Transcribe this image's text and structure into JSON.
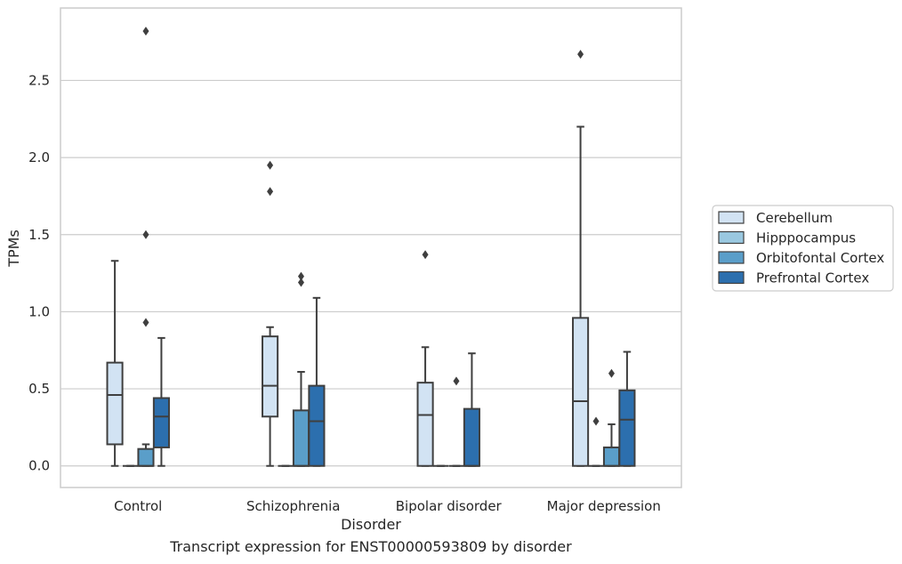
{
  "caption": "Transcript expression for ENST00000593809 by disorder",
  "chart_data": {
    "type": "box",
    "xlabel": "Disorder",
    "ylabel": "TPMs",
    "ylim": [
      -0.14,
      2.97
    ],
    "yticks": [
      0.0,
      0.5,
      1.0,
      1.5,
      2.0,
      2.5
    ],
    "ytick_labels": [
      "0.0",
      "0.5",
      "1.0",
      "1.5",
      "2.0",
      "2.5"
    ],
    "categories": [
      "Control",
      "Schizophrenia",
      "Bipolar disorder",
      "Major depression"
    ],
    "grid": "horizontal",
    "legend_position": "right",
    "series": [
      {
        "name": "Cerebellum",
        "color": "#d2e3f3",
        "boxes": [
          {
            "whisker_low": 0.0,
            "q1": 0.14,
            "median": 0.46,
            "q3": 0.67,
            "whisker_high": 1.33,
            "outliers": []
          },
          {
            "whisker_low": 0.0,
            "q1": 0.32,
            "median": 0.52,
            "q3": 0.84,
            "whisker_high": 0.9,
            "outliers": [
              1.78,
              1.95
            ]
          },
          {
            "whisker_low": 0.0,
            "q1": 0.0,
            "median": 0.33,
            "q3": 0.54,
            "whisker_high": 0.77,
            "outliers": [
              1.37
            ]
          },
          {
            "whisker_low": 0.0,
            "q1": 0.0,
            "median": 0.42,
            "q3": 0.96,
            "whisker_high": 2.2,
            "outliers": [
              2.67
            ]
          }
        ]
      },
      {
        "name": "Hipppocampus",
        "color": "#9ac8e0",
        "boxes": [
          {
            "whisker_low": 0.0,
            "q1": 0.0,
            "median": 0.0,
            "q3": 0.0,
            "whisker_high": 0.0,
            "outliers": []
          },
          {
            "whisker_low": 0.0,
            "q1": 0.0,
            "median": 0.0,
            "q3": 0.0,
            "whisker_high": 0.0,
            "outliers": []
          },
          {
            "whisker_low": 0.0,
            "q1": 0.0,
            "median": 0.0,
            "q3": 0.0,
            "whisker_high": 0.0,
            "outliers": []
          },
          {
            "whisker_low": 0.0,
            "q1": 0.0,
            "median": 0.0,
            "q3": 0.0,
            "whisker_high": 0.0,
            "outliers": [
              0.29
            ]
          }
        ]
      },
      {
        "name": "Orbitofontal Cortex",
        "color": "#5a9ec9",
        "boxes": [
          {
            "whisker_low": 0.0,
            "q1": 0.0,
            "median": 0.0,
            "q3": 0.11,
            "whisker_high": 0.14,
            "outliers": [
              0.93,
              1.5,
              2.82
            ]
          },
          {
            "whisker_low": 0.0,
            "q1": 0.0,
            "median": 0.0,
            "q3": 0.36,
            "whisker_high": 0.61,
            "outliers": [
              1.19,
              1.23
            ]
          },
          {
            "whisker_low": 0.0,
            "q1": 0.0,
            "median": 0.0,
            "q3": 0.0,
            "whisker_high": 0.0,
            "outliers": [
              0.55
            ]
          },
          {
            "whisker_low": 0.0,
            "q1": 0.0,
            "median": 0.0,
            "q3": 0.12,
            "whisker_high": 0.27,
            "outliers": [
              0.6
            ]
          }
        ]
      },
      {
        "name": "Prefrontal Cortex",
        "color": "#2c6fae",
        "boxes": [
          {
            "whisker_low": 0.0,
            "q1": 0.12,
            "median": 0.32,
            "q3": 0.44,
            "whisker_high": 0.83,
            "outliers": []
          },
          {
            "whisker_low": 0.0,
            "q1": 0.0,
            "median": 0.29,
            "q3": 0.52,
            "whisker_high": 1.09,
            "outliers": []
          },
          {
            "whisker_low": 0.0,
            "q1": 0.0,
            "median": 0.0,
            "q3": 0.37,
            "whisker_high": 0.73,
            "outliers": []
          },
          {
            "whisker_low": 0.0,
            "q1": 0.0,
            "median": 0.3,
            "q3": 0.49,
            "whisker_high": 0.74,
            "outliers": []
          }
        ]
      }
    ]
  }
}
